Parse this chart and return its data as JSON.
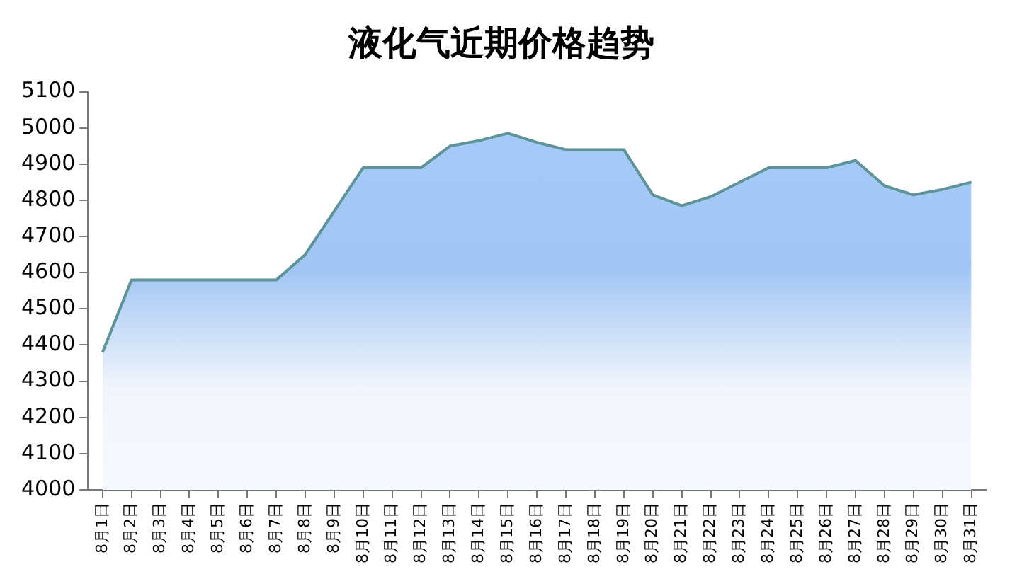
{
  "chart_data": {
    "type": "area",
    "title": "液化气近期价格趋势",
    "categories": [
      "8月1日",
      "8月2日",
      "8月3日",
      "8月4日",
      "8月5日",
      "8月6日",
      "8月7日",
      "8月8日",
      "8月9日",
      "8月10日",
      "8月11日",
      "8月12日",
      "8月13日",
      "8月14日",
      "8月15日",
      "8月16日",
      "8月17日",
      "8月18日",
      "8月19日",
      "8月20日",
      "8月21日",
      "8月22日",
      "8月23日",
      "8月24日",
      "8月25日",
      "8月26日",
      "8月27日",
      "8月28日",
      "8月29日",
      "8月30日",
      "8月31日"
    ],
    "series": [
      {
        "color": "#5e9498",
        "values": [
          4380,
          4580,
          4580,
          4580,
          4580,
          4580,
          4580,
          4650,
          4770,
          4890,
          4890,
          4890,
          4950,
          4965,
          4985,
          4960,
          4940,
          4940,
          4940,
          4815,
          4785,
          4810,
          4850,
          4890,
          4890,
          4890,
          4910,
          4840,
          4815,
          4830,
          4850
        ]
      }
    ],
    "ylim": [
      4000,
      5100
    ],
    "yticks": [
      4000,
      4100,
      4200,
      4300,
      4400,
      4500,
      4600,
      4700,
      4800,
      4900,
      5000,
      5100
    ],
    "grid": false,
    "legend": false,
    "marker": "none",
    "line_style": "solid"
  }
}
